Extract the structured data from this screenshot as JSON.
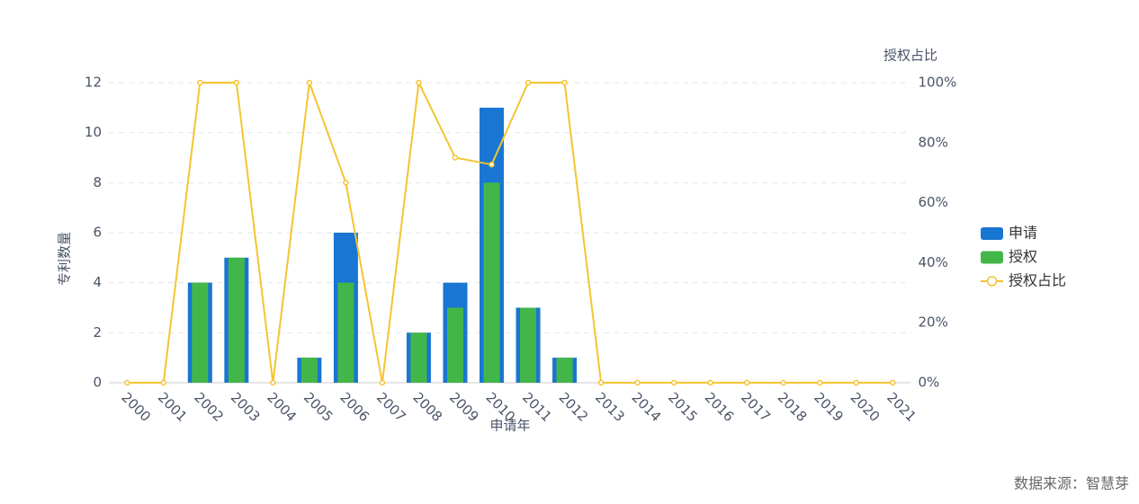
{
  "chart_data": {
    "type": "bar-line",
    "x_label": "申请年",
    "y_label": "专利数量",
    "y2_label": "授权占比",
    "source": "数据来源：智慧芽",
    "categories": [
      "2000",
      "2001",
      "2002",
      "2003",
      "2004",
      "2005",
      "2006",
      "2007",
      "2008",
      "2009",
      "2010",
      "2011",
      "2012",
      "2013",
      "2014",
      "2015",
      "2016",
      "2017",
      "2018",
      "2019",
      "2020",
      "2021"
    ],
    "series": [
      {
        "name": "申请",
        "color": "#1976d2",
        "values": [
          0,
          0,
          4,
          5,
          0,
          1,
          6,
          0,
          2,
          4,
          11,
          3,
          1,
          0,
          0,
          0,
          0,
          0,
          0,
          0,
          0,
          0
        ]
      },
      {
        "name": "授权",
        "color": "#43b649",
        "values": [
          0,
          0,
          4,
          5,
          0,
          1,
          4,
          0,
          2,
          3,
          8,
          3,
          1,
          0,
          0,
          0,
          0,
          0,
          0,
          0,
          0,
          0
        ]
      },
      {
        "name": "授权占比",
        "color": "#f4c430",
        "axis": "y2",
        "values": [
          0,
          0,
          100,
          100,
          0,
          100,
          66.7,
          0,
          100,
          75,
          72.7,
          100,
          100,
          0,
          0,
          0,
          0,
          0,
          0,
          0,
          0,
          0
        ]
      }
    ],
    "ylim": [
      0,
      12
    ],
    "yticks": [
      0,
      2,
      4,
      6,
      8,
      10,
      12
    ],
    "y2lim": [
      0,
      100
    ],
    "y2ticks": [
      {
        "value": 0,
        "label": "0%"
      },
      {
        "value": 20,
        "label": "20%"
      },
      {
        "value": 40,
        "label": "40%"
      },
      {
        "value": 60,
        "label": "60%"
      },
      {
        "value": 80,
        "label": "80%"
      },
      {
        "value": 100,
        "label": "100%"
      }
    ],
    "grid": true,
    "legend": "right"
  }
}
